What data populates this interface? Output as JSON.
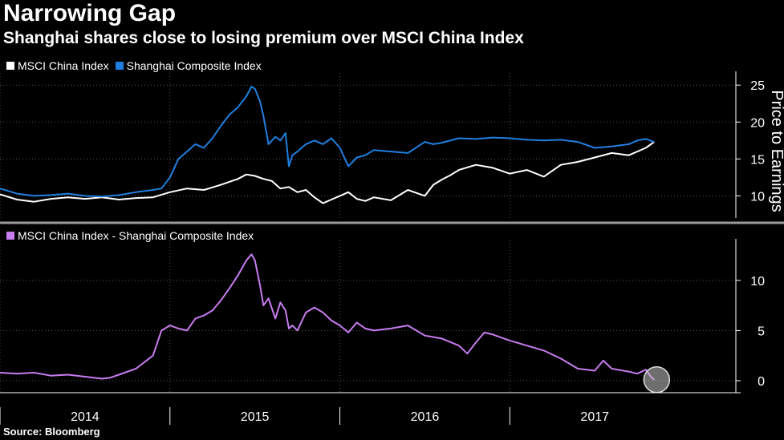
{
  "title": "Narrowing Gap",
  "subtitle": "Shanghai shares close to losing premium over MSCI China Index",
  "source": "Source: Bloomberg",
  "colors": {
    "background": "#000000",
    "msci": "#ffffff",
    "shanghai": "#1f7fe0",
    "difference": "#c77cf0",
    "grid": "#555555"
  },
  "panels": {
    "top": {
      "legend": [
        {
          "label": "MSCI China Index",
          "color": "#ffffff"
        },
        {
          "label": "Shanghai Composite Index",
          "color": "#1f7fe0"
        }
      ]
    },
    "bottom": {
      "legend": [
        {
          "label": "MSCI China Index - Shanghai Composite Index",
          "color": "#c77cf0"
        }
      ]
    }
  },
  "chart_data": [
    {
      "type": "line",
      "ylabel": "Price to Earnings",
      "ylim": [
        7,
        26
      ],
      "yticks": [
        10,
        15,
        20,
        25
      ],
      "xlim": [
        2013.5,
        2017.83
      ],
      "grid": true,
      "legend_position": "top-left",
      "series": [
        {
          "name": "MSCI China Index",
          "color": "#ffffff",
          "x": [
            2013.5,
            2013.6,
            2013.7,
            2013.8,
            2013.9,
            2014.0,
            2014.1,
            2014.2,
            2014.3,
            2014.4,
            2014.5,
            2014.6,
            2014.7,
            2014.8,
            2014.9,
            2014.95,
            2015.0,
            2015.05,
            2015.1,
            2015.15,
            2015.2,
            2015.25,
            2015.3,
            2015.35,
            2015.4,
            2015.45,
            2015.5,
            2015.55,
            2015.6,
            2015.65,
            2015.7,
            2015.8,
            2015.9,
            2016.0,
            2016.05,
            2016.1,
            2016.15,
            2016.2,
            2016.3,
            2016.4,
            2016.5,
            2016.6,
            2016.7,
            2016.8,
            2016.9,
            2017.0,
            2017.1,
            2017.2,
            2017.3,
            2017.35
          ],
          "y": [
            10.2,
            9.5,
            9.2,
            9.6,
            9.8,
            9.6,
            9.8,
            9.5,
            9.7,
            9.8,
            10.5,
            11.0,
            10.8,
            11.5,
            12.3,
            12.9,
            12.7,
            12.3,
            12.0,
            11.0,
            11.2,
            10.5,
            10.8,
            9.8,
            9.0,
            9.5,
            10.0,
            10.5,
            9.6,
            9.3,
            9.8,
            9.4,
            10.8,
            10.0,
            11.5,
            12.2,
            12.8,
            13.5,
            14.2,
            13.8,
            13.0,
            13.5,
            12.6,
            14.2,
            14.6,
            15.2,
            15.8,
            15.5,
            16.5,
            17.3
          ]
        },
        {
          "name": "Shanghai Composite Index",
          "color": "#1f7fe0",
          "x": [
            2013.5,
            2013.6,
            2013.7,
            2013.8,
            2013.9,
            2014.0,
            2014.1,
            2014.2,
            2014.3,
            2014.4,
            2014.45,
            2014.5,
            2014.55,
            2014.6,
            2014.65,
            2014.7,
            2014.75,
            2014.8,
            2014.85,
            2014.9,
            2014.95,
            2014.98,
            2015.0,
            2015.03,
            2015.05,
            2015.08,
            2015.12,
            2015.15,
            2015.18,
            2015.2,
            2015.22,
            2015.25,
            2015.3,
            2015.35,
            2015.4,
            2015.45,
            2015.5,
            2015.55,
            2015.6,
            2015.65,
            2015.7,
            2015.8,
            2015.9,
            2016.0,
            2016.05,
            2016.1,
            2016.2,
            2016.3,
            2016.4,
            2016.5,
            2016.6,
            2016.7,
            2016.8,
            2016.9,
            2017.0,
            2017.1,
            2017.2,
            2017.25,
            2017.3,
            2017.35
          ],
          "y": [
            11.0,
            10.3,
            10.0,
            10.1,
            10.3,
            10.0,
            9.9,
            10.1,
            10.5,
            10.8,
            11.0,
            12.5,
            15.0,
            16.0,
            17.0,
            16.5,
            17.8,
            19.5,
            21.0,
            22.0,
            23.5,
            24.8,
            24.5,
            22.8,
            20.8,
            17.0,
            18.0,
            17.5,
            18.5,
            14.0,
            15.5,
            16.0,
            17.0,
            17.5,
            17.0,
            17.8,
            16.5,
            14.0,
            15.2,
            15.5,
            16.2,
            16.0,
            15.8,
            17.3,
            17.0,
            17.2,
            17.8,
            17.7,
            17.9,
            17.8,
            17.6,
            17.5,
            17.6,
            17.3,
            16.5,
            16.7,
            17.0,
            17.5,
            17.7,
            17.3
          ]
        }
      ]
    },
    {
      "type": "line",
      "ylim": [
        -1.2,
        13.5
      ],
      "yticks": [
        0,
        5,
        10
      ],
      "xlim": [
        2013.5,
        2017.83
      ],
      "grid": true,
      "legend_position": "top-left",
      "series": [
        {
          "name": "MSCI China Index - Shanghai Composite Index",
          "color": "#c77cf0",
          "x": [
            2013.5,
            2013.6,
            2013.7,
            2013.8,
            2013.9,
            2014.0,
            2014.1,
            2014.15,
            2014.2,
            2014.3,
            2014.4,
            2014.45,
            2014.5,
            2014.55,
            2014.6,
            2014.65,
            2014.7,
            2014.75,
            2014.8,
            2014.85,
            2014.9,
            2014.95,
            2014.98,
            2015.0,
            2015.03,
            2015.05,
            2015.08,
            2015.12,
            2015.15,
            2015.18,
            2015.2,
            2015.22,
            2015.25,
            2015.3,
            2015.35,
            2015.4,
            2015.45,
            2015.5,
            2015.55,
            2015.6,
            2015.65,
            2015.7,
            2015.8,
            2015.9,
            2016.0,
            2016.1,
            2016.2,
            2016.25,
            2016.3,
            2016.35,
            2016.4,
            2016.5,
            2016.6,
            2016.7,
            2016.8,
            2016.9,
            2017.0,
            2017.05,
            2017.1,
            2017.2,
            2017.25,
            2017.3,
            2017.33,
            2017.35
          ],
          "y": [
            0.8,
            0.7,
            0.8,
            0.5,
            0.6,
            0.4,
            0.2,
            0.3,
            0.6,
            1.2,
            2.5,
            5.0,
            5.5,
            5.2,
            5.0,
            6.2,
            6.5,
            7.0,
            8.0,
            9.2,
            10.5,
            12.0,
            12.6,
            12.0,
            9.5,
            7.5,
            8.2,
            6.2,
            7.8,
            7.0,
            5.2,
            5.5,
            5.0,
            6.8,
            7.3,
            6.8,
            6.0,
            5.5,
            4.8,
            5.8,
            5.2,
            5.0,
            5.2,
            5.5,
            4.5,
            4.2,
            3.5,
            2.7,
            3.8,
            4.8,
            4.6,
            4.0,
            3.5,
            3.0,
            2.2,
            1.2,
            1.0,
            2.0,
            1.2,
            0.9,
            0.7,
            1.1,
            0.4,
            0.1
          ]
        }
      ]
    }
  ],
  "x_axis": {
    "labels": [
      {
        "label": "2014",
        "x": 2014.0
      },
      {
        "label": "2015",
        "x": 2015.0
      },
      {
        "label": "2016",
        "x": 2016.0
      },
      {
        "label": "2017",
        "x": 2017.0
      }
    ],
    "boundaries": [
      2013.5,
      2014.5,
      2015.5,
      2016.5
    ]
  }
}
